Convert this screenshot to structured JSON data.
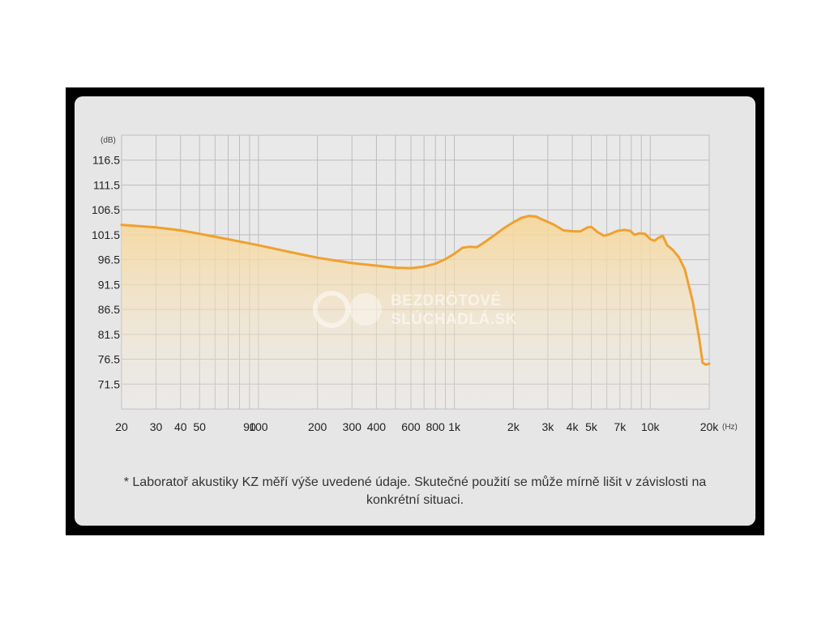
{
  "chart_data": {
    "type": "line",
    "ylabel": "(dB)",
    "xlabel": "(Hz)",
    "x_scale": "log",
    "xlim": [
      20,
      20000
    ],
    "ylim": [
      66.5,
      121.5
    ],
    "y_ticks": [
      116.5,
      111.5,
      106.5,
      101.5,
      96.5,
      91.5,
      86.5,
      81.5,
      76.5,
      71.5
    ],
    "x_ticks": [
      {
        "value": 20,
        "label": "20"
      },
      {
        "value": 30,
        "label": "30"
      },
      {
        "value": 40,
        "label": "40"
      },
      {
        "value": 50,
        "label": "50"
      },
      {
        "value": 90,
        "label": "90"
      },
      {
        "value": 100,
        "label": "100"
      },
      {
        "value": 200,
        "label": "200"
      },
      {
        "value": 300,
        "label": "300"
      },
      {
        "value": 400,
        "label": "400"
      },
      {
        "value": 600,
        "label": "600"
      },
      {
        "value": 800,
        "label": "800"
      },
      {
        "value": 1000,
        "label": "1k"
      },
      {
        "value": 2000,
        "label": "2k"
      },
      {
        "value": 3000,
        "label": "3k"
      },
      {
        "value": 4000,
        "label": "4k"
      },
      {
        "value": 5000,
        "label": "5k"
      },
      {
        "value": 7000,
        "label": "7k"
      },
      {
        "value": 10000,
        "label": "10k"
      },
      {
        "value": 20000,
        "label": "20k"
      }
    ],
    "grid_x": [
      20,
      30,
      40,
      50,
      60,
      70,
      80,
      90,
      100,
      200,
      300,
      400,
      500,
      600,
      700,
      800,
      900,
      1000,
      2000,
      3000,
      4000,
      5000,
      6000,
      7000,
      8000,
      9000,
      10000,
      20000
    ],
    "grid": true,
    "series": [
      {
        "color": "#f0a030",
        "points": [
          [
            20,
            103.5
          ],
          [
            30,
            103.0
          ],
          [
            40,
            102.4
          ],
          [
            50,
            101.7
          ],
          [
            70,
            100.6
          ],
          [
            100,
            99.4
          ],
          [
            150,
            97.9
          ],
          [
            200,
            96.9
          ],
          [
            300,
            95.8
          ],
          [
            400,
            95.3
          ],
          [
            500,
            94.9
          ],
          [
            600,
            94.8
          ],
          [
            700,
            95.1
          ],
          [
            800,
            95.7
          ],
          [
            900,
            96.6
          ],
          [
            1000,
            97.7
          ],
          [
            1100,
            98.9
          ],
          [
            1200,
            99.1
          ],
          [
            1300,
            99.0
          ],
          [
            1400,
            99.8
          ],
          [
            1600,
            101.4
          ],
          [
            1800,
            102.9
          ],
          [
            2000,
            104.0
          ],
          [
            2200,
            104.9
          ],
          [
            2400,
            105.3
          ],
          [
            2600,
            105.2
          ],
          [
            2800,
            104.6
          ],
          [
            3200,
            103.6
          ],
          [
            3600,
            102.4
          ],
          [
            4000,
            102.2
          ],
          [
            4400,
            102.2
          ],
          [
            4800,
            103.0
          ],
          [
            5000,
            103.1
          ],
          [
            5400,
            102.0
          ],
          [
            5800,
            101.3
          ],
          [
            6200,
            101.6
          ],
          [
            6800,
            102.3
          ],
          [
            7400,
            102.5
          ],
          [
            7900,
            102.3
          ],
          [
            8300,
            101.5
          ],
          [
            8800,
            101.8
          ],
          [
            9400,
            101.7
          ],
          [
            10000,
            100.6
          ],
          [
            10500,
            100.3
          ],
          [
            11000,
            100.9
          ],
          [
            11600,
            101.3
          ],
          [
            12200,
            99.4
          ],
          [
            13000,
            98.5
          ],
          [
            14000,
            97.0
          ],
          [
            15000,
            94.6
          ],
          [
            16500,
            88.0
          ],
          [
            17800,
            80.5
          ],
          [
            18500,
            75.8
          ],
          [
            19200,
            75.4
          ],
          [
            20000,
            75.6
          ]
        ]
      }
    ]
  },
  "watermark": {
    "line1": "BEZDRÔTOVÉ",
    "line2": "SLÚCHADLÁ.SK"
  },
  "footnote": "* Laboratoř akustiky KZ měří výše uvedené údaje. Skutečné použití se může mírně lišit v závislosti na konkrétní situaci.",
  "colors": {
    "line": "#f0a030",
    "fill_top": "#f6d79a",
    "card_bg": "#e6e6e6",
    "frame": "#000000"
  }
}
